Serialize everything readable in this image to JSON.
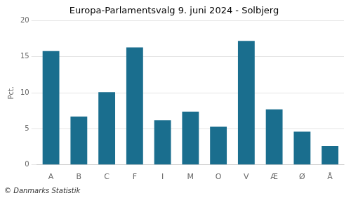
{
  "chart_data": {
    "type": "bar",
    "title": "Europa-Parlamentsvalg 9. juni 2024 - Solbjerg",
    "ylabel": "Pct.",
    "annotations": [
      "© Danmarks Statistik"
    ],
    "categories": [
      "A",
      "B",
      "C",
      "F",
      "I",
      "M",
      "O",
      "V",
      "Æ",
      "Ø",
      "Å"
    ],
    "values": [
      15.8,
      6.7,
      10.1,
      16.3,
      6.2,
      7.4,
      5.3,
      17.2,
      7.7,
      4.6,
      2.6
    ],
    "color": "#1a6e8e",
    "ylim": [
      0,
      20
    ],
    "yticks": [
      0,
      5,
      10,
      15,
      20
    ],
    "grid": true
  }
}
